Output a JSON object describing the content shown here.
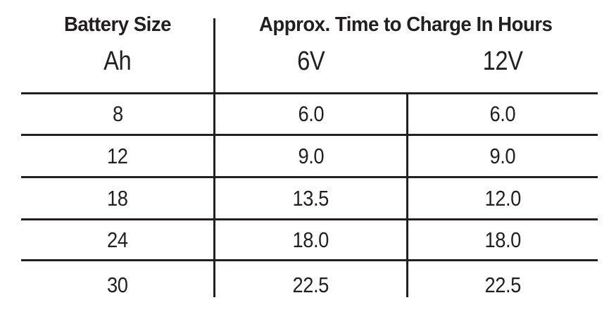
{
  "colors": {
    "ink": "#231f20",
    "background": "#ffffff"
  },
  "table": {
    "header": {
      "battery_size": "Battery Size",
      "charge_time": "Approx. Time to Charge In Hours"
    },
    "subheader": {
      "ah": "Ah",
      "v6": "6V",
      "v12": "12V"
    },
    "rows": [
      {
        "ah": "8",
        "v6": "6.0",
        "v12": "6.0"
      },
      {
        "ah": "12",
        "v6": "9.0",
        "v12": "9.0"
      },
      {
        "ah": "18",
        "v6": "13.5",
        "v12": "12.0"
      },
      {
        "ah": "24",
        "v6": "18.0",
        "v12": "18.0"
      },
      {
        "ah": "30",
        "v6": "22.5",
        "v12": "22.5"
      }
    ]
  }
}
